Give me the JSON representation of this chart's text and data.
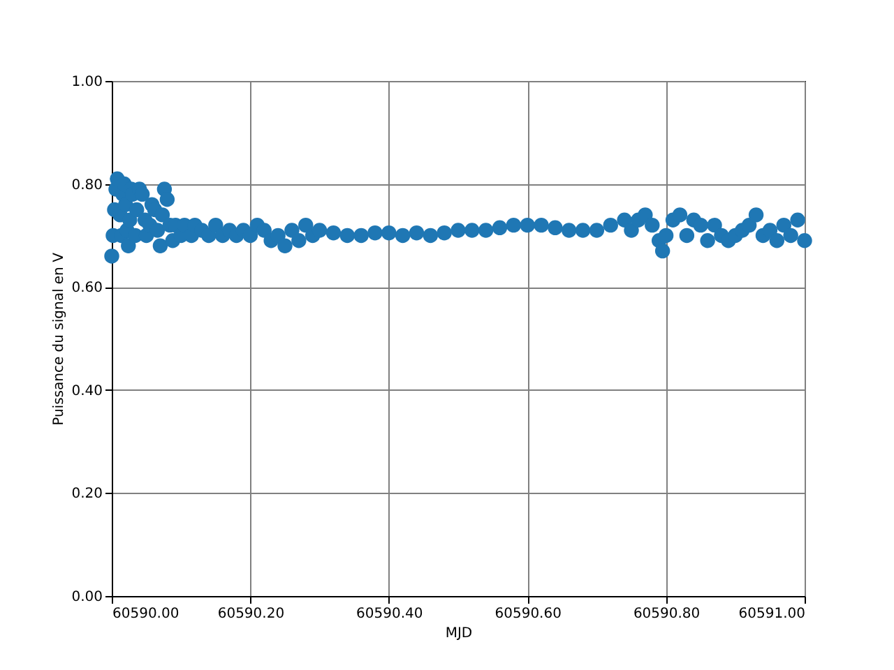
{
  "chart_data": {
    "type": "scatter",
    "xlabel": "MJD",
    "ylabel": "Puissance du signal en V",
    "x": [
      60590.0,
      60590.002,
      60590.004,
      60590.006,
      60590.008,
      60590.012,
      60590.014,
      60590.016,
      60590.018,
      60590.02,
      60590.022,
      60590.024,
      60590.026,
      60590.028,
      60590.03,
      60590.034,
      60590.036,
      60590.04,
      60590.044,
      60590.048,
      60590.05,
      60590.055,
      60590.058,
      60590.062,
      60590.066,
      60590.07,
      60590.073,
      60590.076,
      60590.08,
      60590.084,
      60590.088,
      60590.092,
      60590.1,
      60590.105,
      60590.115,
      60590.12,
      60590.13,
      60590.14,
      60590.15,
      60590.16,
      60590.17,
      60590.18,
      60590.19,
      60590.2,
      60590.21,
      60590.22,
      60590.23,
      60590.24,
      60590.25,
      60590.26,
      60590.27,
      60590.28,
      60590.29,
      60590.3,
      60590.32,
      60590.34,
      60590.36,
      60590.38,
      60590.4,
      60590.42,
      60590.44,
      60590.46,
      60590.48,
      60590.5,
      60590.52,
      60590.54,
      60590.56,
      60590.58,
      60590.6,
      60590.62,
      60590.64,
      60590.66,
      60590.68,
      60590.7,
      60590.72,
      60590.74,
      60590.75,
      60590.76,
      60590.77,
      60590.78,
      60590.79,
      60590.795,
      60590.8,
      60590.81,
      60590.82,
      60590.83,
      60590.84,
      60590.85,
      60590.86,
      60590.87,
      60590.88,
      60590.89,
      60590.9,
      60590.91,
      60590.92,
      60590.93,
      60590.94,
      60590.95,
      60590.96,
      60590.97,
      60590.98,
      60590.99,
      60591.0
    ],
    "series": [
      {
        "color": "#1f77b4",
        "values": [
          0.66,
          0.7,
          0.75,
          0.79,
          0.81,
          0.74,
          0.7,
          0.78,
          0.8,
          0.76,
          0.71,
          0.68,
          0.73,
          0.79,
          0.78,
          0.7,
          0.75,
          0.79,
          0.78,
          0.73,
          0.7,
          0.72,
          0.76,
          0.75,
          0.71,
          0.68,
          0.74,
          0.79,
          0.77,
          0.72,
          0.69,
          0.72,
          0.7,
          0.72,
          0.7,
          0.72,
          0.71,
          0.7,
          0.72,
          0.7,
          0.71,
          0.7,
          0.71,
          0.7,
          0.72,
          0.71,
          0.69,
          0.7,
          0.68,
          0.71,
          0.69,
          0.72,
          0.7,
          0.71,
          0.705,
          0.7,
          0.7,
          0.705,
          0.705,
          0.7,
          0.705,
          0.7,
          0.705,
          0.71,
          0.71,
          0.71,
          0.715,
          0.72,
          0.72,
          0.72,
          0.715,
          0.71,
          0.71,
          0.71,
          0.72,
          0.73,
          0.71,
          0.73,
          0.74,
          0.72,
          0.69,
          0.67,
          0.7,
          0.73,
          0.74,
          0.7,
          0.73,
          0.72,
          0.69,
          0.72,
          0.7,
          0.69,
          0.7,
          0.71,
          0.72,
          0.74,
          0.7,
          0.71,
          0.69,
          0.72,
          0.7,
          0.73,
          0.69
        ]
      }
    ],
    "marker": "circle",
    "grid": true,
    "xlim": [
      60590.0,
      60591.0
    ],
    "xticks": [
      {
        "value": 60590.0,
        "label": "60590.00"
      },
      {
        "value": 60590.2,
        "label": "60590.20"
      },
      {
        "value": 60590.4,
        "label": "60590.40"
      },
      {
        "value": 60590.6,
        "label": "60590.60"
      },
      {
        "value": 60590.8,
        "label": "60590.80"
      },
      {
        "value": 60591.0,
        "label": "60591.00"
      }
    ],
    "ylim": [
      0,
      1
    ],
    "yticks": [
      {
        "value": 0,
        "label": "0.00"
      },
      {
        "value": 0.2,
        "label": "0.20"
      },
      {
        "value": 0.4,
        "label": "0.40"
      },
      {
        "value": 0.6,
        "label": "0.60"
      },
      {
        "value": 0.8,
        "label": "0.80"
      },
      {
        "value": 1,
        "label": "1.00"
      }
    ]
  }
}
